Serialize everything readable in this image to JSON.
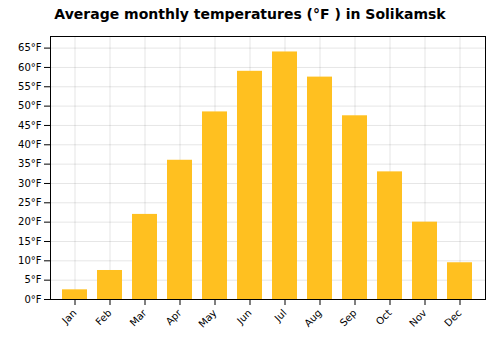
{
  "chart_data": {
    "type": "bar",
    "title": "Average monthly temperatures (°F ) in Solikamsk",
    "categories": [
      "Jan",
      "Feb",
      "Mar",
      "Apr",
      "May",
      "Jun",
      "Jul",
      "Aug",
      "Sep",
      "Oct",
      "Nov",
      "Dec"
    ],
    "values": [
      2.5,
      7.5,
      22,
      36,
      48.5,
      59,
      64,
      57.5,
      47.5,
      33,
      20,
      9.5
    ],
    "color": "#FFC020",
    "ylim": [
      0,
      68
    ],
    "yticks": [
      {
        "value": 0,
        "label": "0°F"
      },
      {
        "value": 5,
        "label": "5°F"
      },
      {
        "value": 10,
        "label": "10°F"
      },
      {
        "value": 15,
        "label": "15°F"
      },
      {
        "value": 20,
        "label": "20°F"
      },
      {
        "value": 25,
        "label": "25°F"
      },
      {
        "value": 30,
        "label": "30°F"
      },
      {
        "value": 35,
        "label": "35°F"
      },
      {
        "value": 40,
        "label": "40°F"
      },
      {
        "value": 45,
        "label": "45°F"
      },
      {
        "value": 50,
        "label": "50°F"
      },
      {
        "value": 55,
        "label": "55°F"
      },
      {
        "value": 60,
        "label": "60°F"
      },
      {
        "value": 65,
        "label": "65°F"
      }
    ],
    "grid": true
  }
}
